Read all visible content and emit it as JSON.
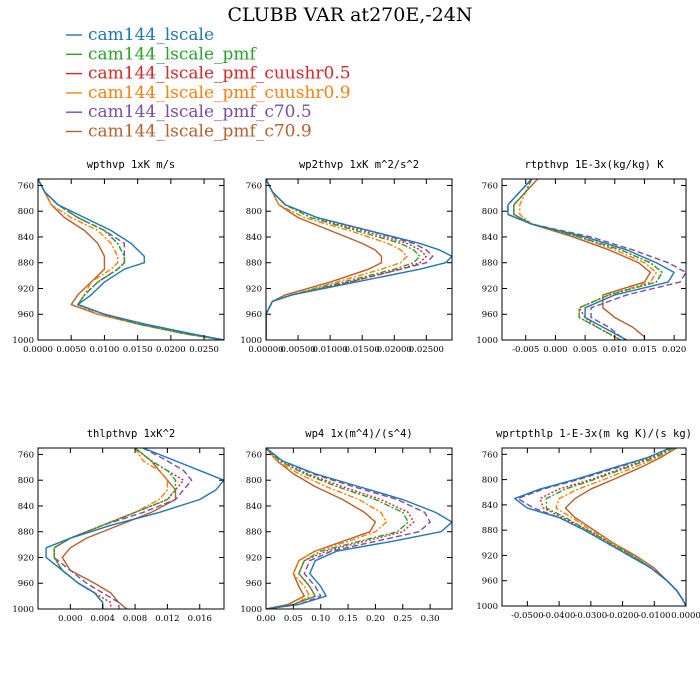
{
  "figure": {
    "title": "CLUBB VAR at270E,-24N"
  },
  "series": [
    {
      "name": "cam144_lscale",
      "color": "#1f77b4",
      "dash": "solid"
    },
    {
      "name": "cam144_lscale_pmf",
      "color": "#2ca02c",
      "dash": "dashdot"
    },
    {
      "name": "cam144_lscale_pmf_cuushr0.5",
      "color": "#d62728",
      "dash": "dot"
    },
    {
      "name": "cam144_lscale_pmf_cuushr0.9",
      "color": "#ff7f0e",
      "dash": "dashdot"
    },
    {
      "name": "cam144_lscale_pmf_c70.5",
      "color": "#7b4ea3",
      "dash": "dash"
    },
    {
      "name": "cam144_lscale_pmf_c70.9",
      "color": "#b5602d",
      "dash": "solid"
    }
  ],
  "chart_data": [
    {
      "type": "line",
      "title": "wpthvp  1xK m/s",
      "xlim": [
        0,
        0.028
      ],
      "ylim": [
        750,
        1000
      ],
      "xticks": [
        0,
        0.005,
        0.01,
        0.015,
        0.02,
        0.025
      ],
      "xtick_labels": [
        "0.0000",
        "0.0050",
        "0.0100",
        "0.0150",
        "0.0200",
        "0.0250"
      ],
      "yticks": [
        760,
        800,
        840,
        880,
        920,
        960,
        1000
      ],
      "ytick_labels": [
        "760",
        "800",
        "840",
        "880",
        "920",
        "960",
        "1000"
      ],
      "levels": [
        750,
        770,
        790,
        810,
        830,
        850,
        870,
        880,
        890,
        910,
        930,
        945,
        960,
        975,
        990,
        1000
      ],
      "series_values": [
        [
          0.0,
          0.001,
          0.003,
          0.007,
          0.011,
          0.014,
          0.016,
          0.016,
          0.013,
          0.01,
          0.008,
          0.006,
          0.01,
          0.016,
          0.023,
          0.028
        ],
        [
          0.0,
          0.001,
          0.003,
          0.006,
          0.01,
          0.012,
          0.013,
          0.013,
          0.012,
          0.009,
          0.007,
          0.006,
          0.01,
          0.015,
          0.022,
          0.028
        ],
        [
          0.0,
          0.001,
          0.003,
          0.006,
          0.01,
          0.012,
          0.013,
          0.013,
          0.012,
          0.009,
          0.007,
          0.006,
          0.01,
          0.015,
          0.022,
          0.028
        ],
        [
          0.0,
          0.001,
          0.002,
          0.005,
          0.009,
          0.011,
          0.012,
          0.012,
          0.011,
          0.008,
          0.007,
          0.006,
          0.009,
          0.015,
          0.022,
          0.028
        ],
        [
          0.0,
          0.001,
          0.003,
          0.006,
          0.01,
          0.013,
          0.013,
          0.013,
          0.012,
          0.009,
          0.007,
          0.006,
          0.01,
          0.015,
          0.022,
          0.028
        ],
        [
          0.0,
          0.001,
          0.002,
          0.004,
          0.007,
          0.009,
          0.01,
          0.01,
          0.01,
          0.008,
          0.006,
          0.005,
          0.009,
          0.015,
          0.022,
          0.028
        ]
      ]
    },
    {
      "type": "line",
      "title": "wp2thvp  1xK m^2/s^2",
      "xlim": [
        0,
        0.029
      ],
      "ylim": [
        750,
        1000
      ],
      "xticks": [
        0,
        0.005,
        0.01,
        0.015,
        0.02,
        0.025
      ],
      "xtick_labels": [
        "0.00000",
        "0.00500",
        "0.01000",
        "0.01500",
        "0.02000",
        "0.02500"
      ],
      "yticks": [
        760,
        800,
        840,
        880,
        920,
        960,
        1000
      ],
      "ytick_labels": [
        "760",
        "800",
        "840",
        "880",
        "920",
        "960",
        "1000"
      ],
      "levels": [
        750,
        770,
        790,
        810,
        830,
        850,
        860,
        870,
        880,
        890,
        910,
        930,
        940,
        960,
        980,
        1000
      ],
      "series_values": [
        [
          0.0,
          0.001,
          0.003,
          0.008,
          0.016,
          0.024,
          0.027,
          0.029,
          0.028,
          0.024,
          0.014,
          0.004,
          0.001,
          0.0,
          0.0,
          0.0
        ],
        [
          0.0,
          0.001,
          0.003,
          0.007,
          0.014,
          0.021,
          0.023,
          0.024,
          0.023,
          0.02,
          0.012,
          0.004,
          0.001,
          0.0,
          0.0,
          0.0
        ],
        [
          0.0,
          0.001,
          0.003,
          0.007,
          0.015,
          0.022,
          0.024,
          0.025,
          0.024,
          0.021,
          0.013,
          0.004,
          0.001,
          0.0,
          0.0,
          0.0
        ],
        [
          0.0,
          0.001,
          0.002,
          0.006,
          0.013,
          0.019,
          0.021,
          0.022,
          0.021,
          0.018,
          0.011,
          0.004,
          0.001,
          0.0,
          0.0,
          0.0
        ],
        [
          0.0,
          0.001,
          0.003,
          0.008,
          0.016,
          0.023,
          0.025,
          0.026,
          0.025,
          0.021,
          0.013,
          0.004,
          0.001,
          0.0,
          0.0,
          0.0
        ],
        [
          0.0,
          0.001,
          0.002,
          0.005,
          0.01,
          0.015,
          0.017,
          0.018,
          0.018,
          0.016,
          0.01,
          0.003,
          0.001,
          0.0,
          0.0,
          0.0
        ]
      ]
    },
    {
      "type": "line",
      "title": "rtpthvp  1E-3x(kg/kg) K",
      "xlim": [
        -0.009,
        0.022
      ],
      "ylim": [
        750,
        1000
      ],
      "xticks": [
        -0.005,
        0,
        0.005,
        0.01,
        0.015,
        0.02
      ],
      "xtick_labels": [
        "-0.005",
        "0.000",
        "0.005",
        "0.010",
        "0.015",
        "0.020"
      ],
      "yticks": [
        760,
        800,
        840,
        880,
        920,
        960,
        1000
      ],
      "ytick_labels": [
        "760",
        "800",
        "840",
        "880",
        "920",
        "960",
        "1000"
      ],
      "levels": [
        750,
        770,
        790,
        805,
        820,
        840,
        860,
        880,
        895,
        910,
        930,
        950,
        965,
        980,
        995,
        1000
      ],
      "series_values": [
        [
          -0.004,
          -0.006,
          -0.008,
          -0.008,
          -0.004,
          0.005,
          0.012,
          0.017,
          0.02,
          0.019,
          0.01,
          0.005,
          0.005,
          0.008,
          0.011,
          0.012
        ],
        [
          -0.004,
          -0.005,
          -0.007,
          -0.007,
          -0.004,
          0.004,
          0.011,
          0.016,
          0.018,
          0.017,
          0.009,
          0.004,
          0.004,
          0.007,
          0.01,
          0.011
        ],
        [
          -0.004,
          -0.005,
          -0.007,
          -0.007,
          -0.004,
          0.004,
          0.011,
          0.016,
          0.018,
          0.017,
          0.009,
          0.004,
          0.005,
          0.007,
          0.01,
          0.011
        ],
        [
          -0.004,
          -0.005,
          -0.006,
          -0.006,
          -0.004,
          0.004,
          0.01,
          0.015,
          0.017,
          0.016,
          0.009,
          0.004,
          0.004,
          0.007,
          0.01,
          0.011
        ],
        [
          -0.004,
          -0.006,
          -0.008,
          -0.008,
          -0.004,
          0.006,
          0.013,
          0.019,
          0.022,
          0.021,
          0.012,
          0.006,
          0.006,
          0.009,
          0.011,
          0.012
        ],
        [
          -0.003,
          -0.005,
          -0.007,
          -0.007,
          -0.004,
          0.003,
          0.009,
          0.014,
          0.016,
          0.015,
          0.008,
          0.008,
          0.01,
          0.013,
          0.015,
          0.015
        ]
      ]
    },
    {
      "type": "line",
      "title": "thlpthvp  1xK^2",
      "xlim": [
        -0.004,
        0.019
      ],
      "ylim": [
        750,
        1000
      ],
      "xticks": [
        0,
        0.004,
        0.008,
        0.012,
        0.016
      ],
      "xtick_labels": [
        "0.000",
        "0.004",
        "0.008",
        "0.012",
        "0.016"
      ],
      "yticks": [
        760,
        800,
        840,
        880,
        920,
        960,
        1000
      ],
      "ytick_labels": [
        "760",
        "800",
        "840",
        "880",
        "920",
        "960",
        "1000"
      ],
      "levels": [
        750,
        770,
        785,
        800,
        815,
        830,
        850,
        870,
        890,
        905,
        920,
        940,
        960,
        975,
        990,
        1000
      ],
      "series_values": [
        [
          0.009,
          0.013,
          0.016,
          0.019,
          0.018,
          0.016,
          0.011,
          0.005,
          0.0,
          -0.003,
          -0.003,
          -0.001,
          0.001,
          0.003,
          0.004,
          0.004
        ],
        [
          0.008,
          0.01,
          0.012,
          0.013,
          0.013,
          0.012,
          0.008,
          0.004,
          0.0,
          -0.002,
          -0.002,
          -0.001,
          0.001,
          0.003,
          0.004,
          0.004
        ],
        [
          0.008,
          0.01,
          0.012,
          0.014,
          0.013,
          0.012,
          0.008,
          0.004,
          0.0,
          -0.002,
          -0.002,
          -0.001,
          0.001,
          0.003,
          0.005,
          0.005
        ],
        [
          0.008,
          0.009,
          0.011,
          0.012,
          0.012,
          0.011,
          0.008,
          0.004,
          0.0,
          -0.002,
          -0.002,
          -0.001,
          0.001,
          0.003,
          0.004,
          0.004
        ],
        [
          0.009,
          0.012,
          0.014,
          0.015,
          0.014,
          0.013,
          0.009,
          0.004,
          0.0,
          -0.002,
          -0.002,
          0.0,
          0.002,
          0.004,
          0.006,
          0.006
        ],
        [
          0.008,
          0.01,
          0.011,
          0.012,
          0.013,
          0.013,
          0.01,
          0.006,
          0.002,
          0.0,
          -0.001,
          0.0,
          0.003,
          0.005,
          0.006,
          0.007
        ]
      ]
    },
    {
      "type": "line",
      "title": "wp4  1x(m^4)/(s^4)",
      "xlim": [
        0,
        0.34
      ],
      "ylim": [
        750,
        1000
      ],
      "xticks": [
        0,
        0.05,
        0.1,
        0.15,
        0.2,
        0.25,
        0.3
      ],
      "xtick_labels": [
        "0.00",
        "0.05",
        "0.10",
        "0.15",
        "0.20",
        "0.25",
        "0.30"
      ],
      "yticks": [
        760,
        800,
        840,
        880,
        920,
        960,
        1000
      ],
      "ytick_labels": [
        "760",
        "800",
        "840",
        "880",
        "920",
        "960",
        "1000"
      ],
      "levels": [
        750,
        770,
        790,
        810,
        830,
        850,
        865,
        880,
        895,
        910,
        925,
        945,
        965,
        980,
        993,
        1000
      ],
      "series_values": [
        [
          0.0,
          0.03,
          0.09,
          0.17,
          0.25,
          0.31,
          0.34,
          0.32,
          0.23,
          0.13,
          0.09,
          0.08,
          0.1,
          0.11,
          0.06,
          0.0
        ],
        [
          0.0,
          0.025,
          0.07,
          0.13,
          0.2,
          0.25,
          0.26,
          0.24,
          0.17,
          0.1,
          0.07,
          0.06,
          0.08,
          0.09,
          0.05,
          0.0
        ],
        [
          0.0,
          0.025,
          0.075,
          0.14,
          0.21,
          0.26,
          0.27,
          0.25,
          0.18,
          0.11,
          0.07,
          0.06,
          0.08,
          0.09,
          0.05,
          0.0
        ],
        [
          0.0,
          0.02,
          0.06,
          0.11,
          0.17,
          0.21,
          0.22,
          0.2,
          0.15,
          0.09,
          0.06,
          0.05,
          0.07,
          0.08,
          0.05,
          0.0
        ],
        [
          0.0,
          0.03,
          0.085,
          0.16,
          0.24,
          0.29,
          0.3,
          0.28,
          0.2,
          0.12,
          0.08,
          0.07,
          0.09,
          0.1,
          0.06,
          0.0
        ],
        [
          0.0,
          0.02,
          0.05,
          0.09,
          0.14,
          0.18,
          0.2,
          0.19,
          0.14,
          0.09,
          0.06,
          0.05,
          0.06,
          0.07,
          0.04,
          0.0
        ]
      ]
    },
    {
      "type": "line",
      "title": "wprtpthlp  1-E-3x(m kg K)/(s kg)",
      "xlim": [
        -0.058,
        0
      ],
      "ylim": [
        750,
        1000
      ],
      "xticks": [
        -0.05,
        -0.04,
        -0.03,
        -0.02,
        -0.01,
        0
      ],
      "xtick_labels": [
        "-0.0500",
        "-0.0400",
        "-0.0300",
        "-0.0200",
        "-0.0100",
        "0.0000"
      ],
      "yticks": [
        760,
        800,
        840,
        880,
        920,
        960,
        1000
      ],
      "ytick_labels": [
        "760",
        "800",
        "840",
        "880",
        "920",
        "960",
        "1000"
      ],
      "levels": [
        750,
        765,
        780,
        800,
        815,
        830,
        845,
        860,
        880,
        900,
        920,
        940,
        960,
        975,
        990,
        1000
      ],
      "series_values": [
        [
          -0.005,
          -0.012,
          -0.022,
          -0.035,
          -0.046,
          -0.054,
          -0.05,
          -0.04,
          -0.032,
          -0.025,
          -0.018,
          -0.011,
          -0.006,
          -0.003,
          -0.001,
          0.0
        ],
        [
          -0.004,
          -0.01,
          -0.018,
          -0.029,
          -0.038,
          -0.044,
          -0.044,
          -0.038,
          -0.031,
          -0.024,
          -0.017,
          -0.011,
          -0.006,
          -0.003,
          -0.001,
          0.0
        ],
        [
          -0.004,
          -0.011,
          -0.019,
          -0.03,
          -0.04,
          -0.046,
          -0.045,
          -0.039,
          -0.031,
          -0.024,
          -0.017,
          -0.011,
          -0.006,
          -0.003,
          -0.001,
          0.0
        ],
        [
          -0.004,
          -0.009,
          -0.016,
          -0.026,
          -0.034,
          -0.04,
          -0.041,
          -0.036,
          -0.03,
          -0.023,
          -0.017,
          -0.011,
          -0.006,
          -0.003,
          -0.001,
          0.0
        ],
        [
          -0.005,
          -0.012,
          -0.021,
          -0.034,
          -0.045,
          -0.053,
          -0.048,
          -0.04,
          -0.032,
          -0.025,
          -0.018,
          -0.011,
          -0.006,
          -0.003,
          -0.001,
          0.0
        ],
        [
          -0.003,
          -0.008,
          -0.014,
          -0.023,
          -0.03,
          -0.035,
          -0.038,
          -0.035,
          -0.029,
          -0.023,
          -0.016,
          -0.01,
          -0.006,
          -0.003,
          -0.001,
          0.0
        ]
      ]
    }
  ]
}
